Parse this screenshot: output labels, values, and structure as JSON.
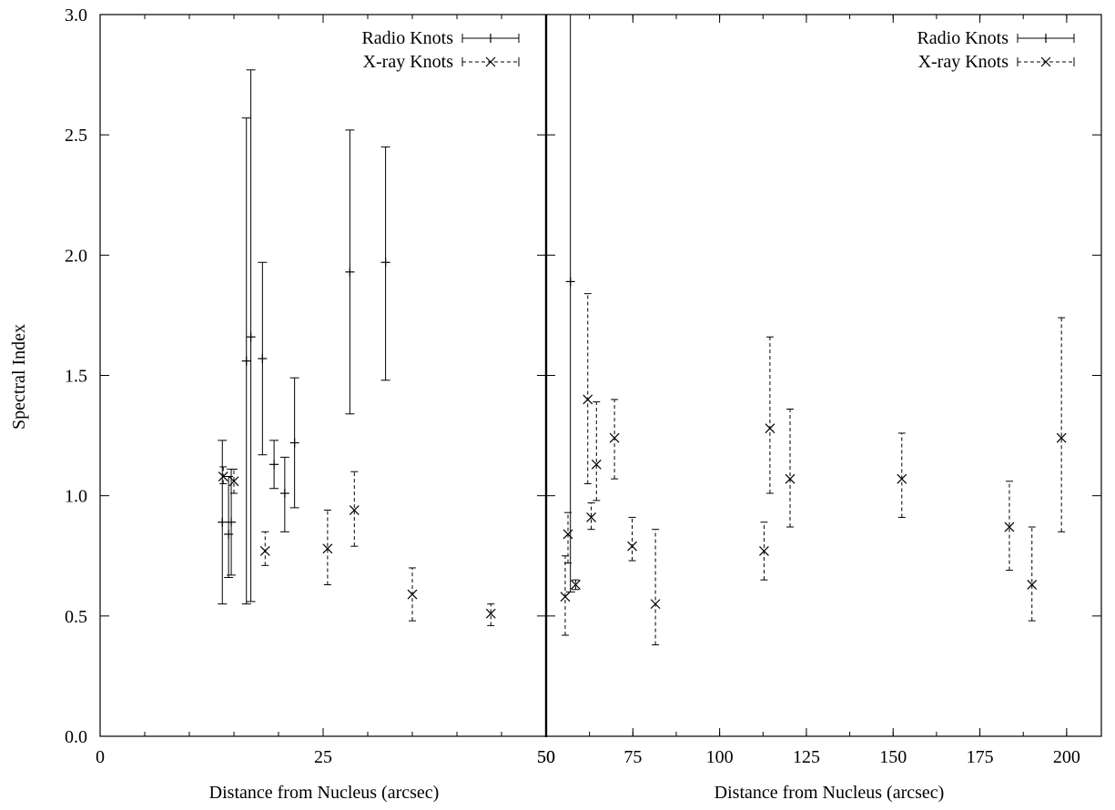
{
  "chart_data": [
    {
      "type": "scatter",
      "panel": "left",
      "xlabel": "Distance from Nucleus (arcsec)",
      "ylabel": "Spectral Index",
      "xlim": [
        0,
        50
      ],
      "ylim": [
        0.0,
        3.0
      ],
      "xticks": [
        "0",
        "25",
        "50"
      ],
      "yticks": [
        "0.0",
        "0.5",
        "1.0",
        "1.5",
        "2.0",
        "2.5",
        "3.0"
      ],
      "legend_position": "top-right",
      "series": [
        {
          "name": "Radio Knots",
          "style": "solid-errorbar-plus",
          "points": [
            {
              "x": 13.7,
              "y": 0.89,
              "ylo": 0.55,
              "yhi": 1.23
            },
            {
              "x": 14.4,
              "y": 0.84,
              "ylo": 0.66,
              "yhi": 1.08
            },
            {
              "x": 14.7,
              "y": 0.89,
              "ylo": 0.67,
              "yhi": 1.11
            },
            {
              "x": 16.4,
              "y": 1.56,
              "ylo": 0.55,
              "yhi": 2.57
            },
            {
              "x": 16.9,
              "y": 1.66,
              "ylo": 0.56,
              "yhi": 2.77
            },
            {
              "x": 18.2,
              "y": 1.57,
              "ylo": 1.17,
              "yhi": 1.97
            },
            {
              "x": 19.5,
              "y": 1.13,
              "ylo": 1.03,
              "yhi": 1.23
            },
            {
              "x": 20.7,
              "y": 1.01,
              "ylo": 0.85,
              "yhi": 1.16
            },
            {
              "x": 21.8,
              "y": 1.22,
              "ylo": 0.95,
              "yhi": 1.49
            },
            {
              "x": 28.0,
              "y": 1.93,
              "ylo": 1.34,
              "yhi": 2.52
            },
            {
              "x": 32.0,
              "y": 1.97,
              "ylo": 1.48,
              "yhi": 2.45
            }
          ]
        },
        {
          "name": "X-ray Knots",
          "style": "dashed-errorbar-cross",
          "points": [
            {
              "x": 13.8,
              "y": 1.08,
              "ylo": 1.05,
              "yhi": 1.12
            },
            {
              "x": 15.0,
              "y": 1.06,
              "ylo": 1.01,
              "yhi": 1.11
            },
            {
              "x": 18.5,
              "y": 0.77,
              "ylo": 0.71,
              "yhi": 0.85
            },
            {
              "x": 25.5,
              "y": 0.78,
              "ylo": 0.63,
              "yhi": 0.94
            },
            {
              "x": 28.5,
              "y": 0.94,
              "ylo": 0.79,
              "yhi": 1.1
            },
            {
              "x": 35.0,
              "y": 0.59,
              "ylo": 0.48,
              "yhi": 0.7
            },
            {
              "x": 43.8,
              "y": 0.51,
              "ylo": 0.46,
              "yhi": 0.55
            }
          ]
        }
      ]
    },
    {
      "type": "scatter",
      "panel": "right",
      "xlabel": "Distance from Nucleus (arcsec)",
      "xlim": [
        50,
        210
      ],
      "ylim": [
        0.0,
        3.0
      ],
      "xticks": [
        "50",
        "75",
        "100",
        "125",
        "150",
        "175",
        "200"
      ],
      "legend_position": "top-right",
      "series": [
        {
          "name": "Radio Knots",
          "style": "solid-errorbar-plus",
          "points": [
            {
              "x": 57.0,
              "y": 1.89,
              "ylo": 0.6,
              "yhi": 3.0
            }
          ]
        },
        {
          "name": "X-ray Knots",
          "style": "dashed-errorbar-cross",
          "points": [
            {
              "x": 55.5,
              "y": 0.58,
              "ylo": 0.42,
              "yhi": 0.75
            },
            {
              "x": 56.3,
              "y": 0.84,
              "ylo": 0.72,
              "yhi": 0.93
            },
            {
              "x": 58.5,
              "y": 0.63,
              "ylo": 0.61,
              "yhi": 0.65
            },
            {
              "x": 62.0,
              "y": 1.4,
              "ylo": 1.05,
              "yhi": 1.84
            },
            {
              "x": 63.0,
              "y": 0.91,
              "ylo": 0.86,
              "yhi": 0.97
            },
            {
              "x": 64.5,
              "y": 1.13,
              "ylo": 0.98,
              "yhi": 1.39
            },
            {
              "x": 69.7,
              "y": 1.24,
              "ylo": 1.07,
              "yhi": 1.4
            },
            {
              "x": 74.8,
              "y": 0.79,
              "ylo": 0.73,
              "yhi": 0.91
            },
            {
              "x": 81.5,
              "y": 0.55,
              "ylo": 0.38,
              "yhi": 0.86
            },
            {
              "x": 112.8,
              "y": 0.77,
              "ylo": 0.65,
              "yhi": 0.89
            },
            {
              "x": 114.5,
              "y": 1.28,
              "ylo": 1.01,
              "yhi": 1.66
            },
            {
              "x": 120.3,
              "y": 1.07,
              "ylo": 0.87,
              "yhi": 1.36
            },
            {
              "x": 152.5,
              "y": 1.07,
              "ylo": 0.91,
              "yhi": 1.26
            },
            {
              "x": 183.5,
              "y": 0.87,
              "ylo": 0.69,
              "yhi": 1.06
            },
            {
              "x": 190.0,
              "y": 0.63,
              "ylo": 0.48,
              "yhi": 0.87
            },
            {
              "x": 198.5,
              "y": 1.24,
              "ylo": 0.85,
              "yhi": 1.74
            }
          ]
        }
      ]
    }
  ]
}
